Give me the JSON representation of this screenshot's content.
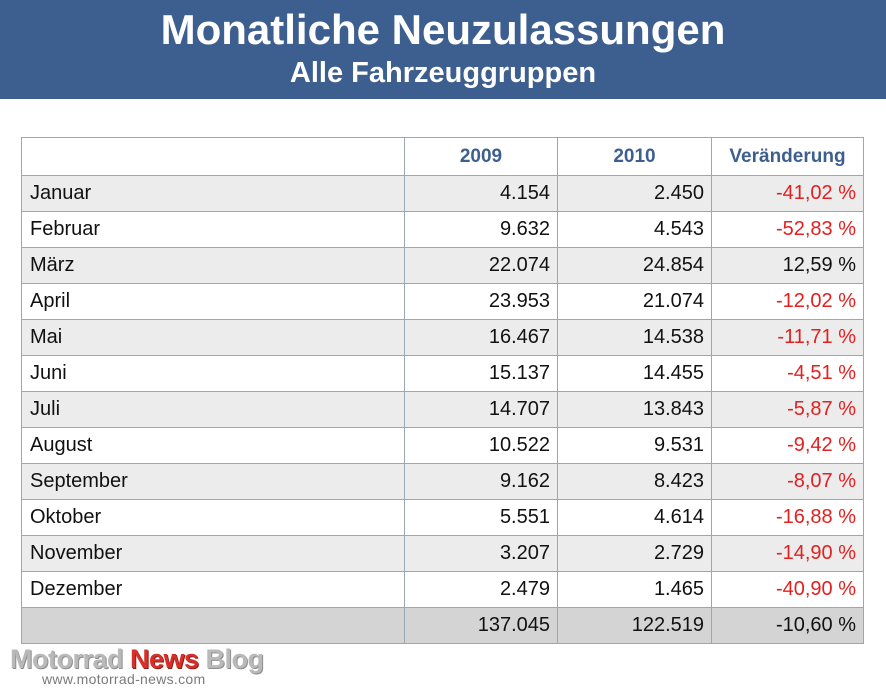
{
  "header": {
    "title": "Monatliche Neuzulassungen",
    "subtitle": "Alle Fahrzeuggruppen"
  },
  "chart_data": {
    "type": "table",
    "title": "Monatliche Neuzulassungen",
    "subtitle": "Alle Fahrzeuggruppen",
    "columns": [
      "",
      "2009",
      "2010",
      "Veränderung"
    ],
    "rows": [
      {
        "label": "Januar",
        "v2009": "4.154",
        "v2010": "2.450",
        "change": "-41,02 %",
        "negative": true
      },
      {
        "label": "Februar",
        "v2009": "9.632",
        "v2010": "4.543",
        "change": "-52,83 %",
        "negative": true
      },
      {
        "label": "März",
        "v2009": "22.074",
        "v2010": "24.854",
        "change": "12,59 %",
        "negative": false
      },
      {
        "label": "April",
        "v2009": "23.953",
        "v2010": "21.074",
        "change": "-12,02 %",
        "negative": true
      },
      {
        "label": "Mai",
        "v2009": "16.467",
        "v2010": "14.538",
        "change": "-11,71 %",
        "negative": true
      },
      {
        "label": "Juni",
        "v2009": "15.137",
        "v2010": "14.455",
        "change": "-4,51 %",
        "negative": true
      },
      {
        "label": "Juli",
        "v2009": "14.707",
        "v2010": "13.843",
        "change": "-5,87 %",
        "negative": true
      },
      {
        "label": "August",
        "v2009": "10.522",
        "v2010": "9.531",
        "change": "-9,42 %",
        "negative": true
      },
      {
        "label": "September",
        "v2009": "9.162",
        "v2010": "8.423",
        "change": "-8,07 %",
        "negative": true
      },
      {
        "label": "Oktober",
        "v2009": "5.551",
        "v2010": "4.614",
        "change": "-16,88 %",
        "negative": true
      },
      {
        "label": "November",
        "v2009": "3.207",
        "v2010": "2.729",
        "change": "-14,90 %",
        "negative": true
      },
      {
        "label": "Dezember",
        "v2009": "2.479",
        "v2010": "1.465",
        "change": "-40,90 %",
        "negative": true
      }
    ],
    "total": {
      "label": "",
      "v2009": "137.045",
      "v2010": "122.519",
      "change": "-10,60 %",
      "negative": false
    }
  },
  "colors": {
    "header_bg": "#3d5f8f",
    "header_text": "#ffffff",
    "column_header_text": "#3d5f8f",
    "negative": "#e32020",
    "row_alt": "#ececec",
    "total_row": "#d4d4d4"
  },
  "watermark": {
    "brand_a": "Motorrad ",
    "brand_b": "News",
    "brand_c": " Blog",
    "url": "www.motorrad-news.com"
  }
}
